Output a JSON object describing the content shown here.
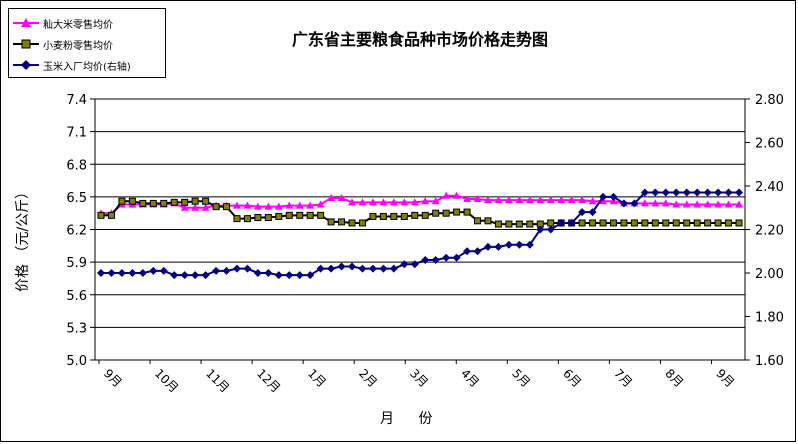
{
  "chart_data": {
    "type": "line",
    "title": "广东省主要粮食品种市场价格走势图",
    "xlabel": "月  份",
    "ylabel": "价格 （元/公斤）",
    "ylim": [
      5.0,
      7.4
    ],
    "y2lim": [
      1.6,
      2.8
    ],
    "y_ticks": [
      "5.0",
      "5.3",
      "5.6",
      "5.9",
      "6.2",
      "6.5",
      "6.8",
      "7.1",
      "7.4"
    ],
    "y2_ticks": [
      "1.60",
      "1.80",
      "2.00",
      "2.20",
      "2.40",
      "2.60",
      "2.80"
    ],
    "x_month_labels": [
      "9月",
      "10月",
      "11月",
      "12月",
      "1月",
      "2月",
      "3月",
      "4月",
      "5月",
      "6月",
      "7月",
      "8月",
      "9月"
    ],
    "grid": "horizontal",
    "legend_position": "top-left",
    "series": [
      {
        "name": "籼大米零售均价",
        "axis": "left",
        "color": "#ff00ff",
        "marker": "triangle",
        "values": [
          6.35,
          6.35,
          6.43,
          6.43,
          6.43,
          6.43,
          6.43,
          6.44,
          6.4,
          6.4,
          6.4,
          6.42,
          6.42,
          6.42,
          6.42,
          6.41,
          6.41,
          6.41,
          6.42,
          6.42,
          6.42,
          6.43,
          6.49,
          6.49,
          6.45,
          6.45,
          6.45,
          6.45,
          6.45,
          6.45,
          6.45,
          6.46,
          6.46,
          6.51,
          6.51,
          6.48,
          6.48,
          6.47,
          6.47,
          6.47,
          6.47,
          6.47,
          6.47,
          6.47,
          6.47,
          6.47,
          6.47,
          6.46,
          6.46,
          6.46,
          6.44,
          6.44,
          6.44,
          6.44,
          6.44,
          6.43,
          6.43,
          6.43,
          6.43,
          6.43,
          6.43,
          6.43
        ]
      },
      {
        "name": "小麦粉零售均价",
        "axis": "left",
        "color": "#000000",
        "marker": "square",
        "values": [
          6.33,
          6.33,
          6.46,
          6.46,
          6.44,
          6.44,
          6.44,
          6.45,
          6.45,
          6.46,
          6.46,
          6.41,
          6.41,
          6.3,
          6.3,
          6.31,
          6.31,
          6.32,
          6.33,
          6.33,
          6.33,
          6.33,
          6.27,
          6.27,
          6.26,
          6.26,
          6.32,
          6.32,
          6.32,
          6.32,
          6.33,
          6.33,
          6.35,
          6.35,
          6.36,
          6.36,
          6.28,
          6.28,
          6.25,
          6.25,
          6.25,
          6.25,
          6.25,
          6.26,
          6.26,
          6.26,
          6.26,
          6.26,
          6.26,
          6.26,
          6.26,
          6.26,
          6.26,
          6.26,
          6.26,
          6.26,
          6.26,
          6.26,
          6.26,
          6.26,
          6.26,
          6.26
        ]
      },
      {
        "name": "玉米入厂均价(右轴)",
        "axis": "right",
        "color": "#000080",
        "marker": "diamond",
        "values": [
          2.0,
          2.0,
          2.0,
          2.0,
          2.0,
          2.01,
          2.01,
          1.99,
          1.99,
          1.99,
          1.99,
          2.01,
          2.01,
          2.02,
          2.02,
          2.0,
          2.0,
          1.99,
          1.99,
          1.99,
          1.99,
          2.02,
          2.02,
          2.03,
          2.03,
          2.02,
          2.02,
          2.02,
          2.02,
          2.04,
          2.04,
          2.06,
          2.06,
          2.07,
          2.07,
          2.1,
          2.1,
          2.12,
          2.12,
          2.13,
          2.13,
          2.13,
          2.2,
          2.2,
          2.23,
          2.23,
          2.28,
          2.28,
          2.35,
          2.35,
          2.32,
          2.32,
          2.37,
          2.37,
          2.37,
          2.37,
          2.37,
          2.37,
          2.37,
          2.37,
          2.37,
          2.37
        ]
      }
    ]
  }
}
